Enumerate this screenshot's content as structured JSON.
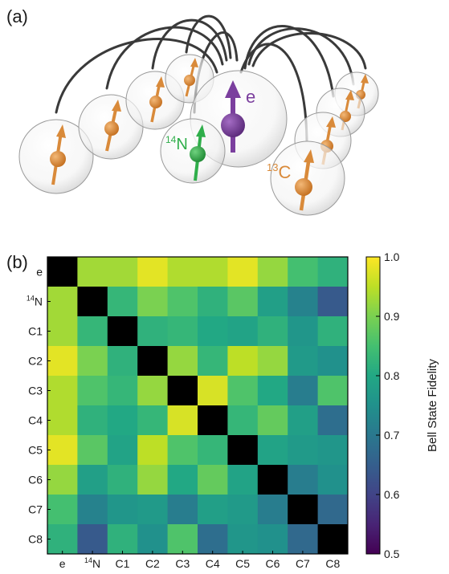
{
  "panel_a": {
    "label": "(a)",
    "electron_label": "e",
    "nitrogen_label": {
      "sup": "14",
      "base": "N"
    },
    "carbon_label": {
      "sup": "13",
      "base": "C"
    },
    "colors": {
      "electron": "#7b3f9e",
      "nitrogen": "#2fae4a",
      "carbon": "#d98a3a",
      "link": "#3a3a3a"
    }
  },
  "panel_b": {
    "label": "(b)"
  },
  "chart_data": {
    "type": "heatmap",
    "title": "",
    "rows": [
      "e",
      "14N",
      "C1",
      "C2",
      "C3",
      "C4",
      "C5",
      "C6",
      "C7",
      "C8"
    ],
    "columns": [
      "e",
      "14N",
      "C1",
      "C2",
      "C3",
      "C4",
      "C5",
      "C6",
      "C7",
      "C8"
    ],
    "row_tick_labels": [
      {
        "sup": "",
        "base": "e"
      },
      {
        "sup": "14",
        "base": "N"
      },
      {
        "sup": "",
        "base": "C1"
      },
      {
        "sup": "",
        "base": "C2"
      },
      {
        "sup": "",
        "base": "C3"
      },
      {
        "sup": "",
        "base": "C4"
      },
      {
        "sup": "",
        "base": "C5"
      },
      {
        "sup": "",
        "base": "C6"
      },
      {
        "sup": "",
        "base": "C7"
      },
      {
        "sup": "",
        "base": "C8"
      }
    ],
    "values": [
      [
        null,
        0.93,
        0.93,
        0.98,
        0.94,
        0.94,
        0.98,
        0.92,
        0.85,
        0.82
      ],
      [
        0.93,
        null,
        0.83,
        0.9,
        0.86,
        0.82,
        0.87,
        0.78,
        0.72,
        0.64
      ],
      [
        0.93,
        0.83,
        null,
        0.82,
        0.83,
        0.8,
        0.79,
        0.82,
        0.76,
        0.82
      ],
      [
        0.98,
        0.9,
        0.82,
        null,
        0.92,
        0.83,
        0.95,
        0.92,
        0.77,
        0.75
      ],
      [
        0.94,
        0.86,
        0.83,
        0.92,
        null,
        0.97,
        0.86,
        0.8,
        0.71,
        0.86
      ],
      [
        0.94,
        0.82,
        0.8,
        0.83,
        0.97,
        null,
        0.83,
        0.88,
        0.78,
        0.68
      ],
      [
        0.98,
        0.87,
        0.79,
        0.95,
        0.86,
        0.83,
        null,
        0.79,
        0.77,
        0.76
      ],
      [
        0.92,
        0.78,
        0.82,
        0.92,
        0.8,
        0.88,
        0.79,
        null,
        0.71,
        0.75
      ],
      [
        0.85,
        0.72,
        0.76,
        0.77,
        0.71,
        0.78,
        0.77,
        0.71,
        null,
        0.67
      ],
      [
        0.82,
        0.64,
        0.82,
        0.75,
        0.86,
        0.68,
        0.76,
        0.75,
        0.67,
        null
      ]
    ],
    "diagonal_color": "#000000",
    "colorbar": {
      "label": "Bell State Fidelity",
      "range": [
        0.5,
        1.0
      ],
      "ticks": [
        "1.0",
        "0.9",
        "0.8",
        "0.7",
        "0.6",
        "0.5"
      ],
      "colormap": "viridis"
    }
  }
}
